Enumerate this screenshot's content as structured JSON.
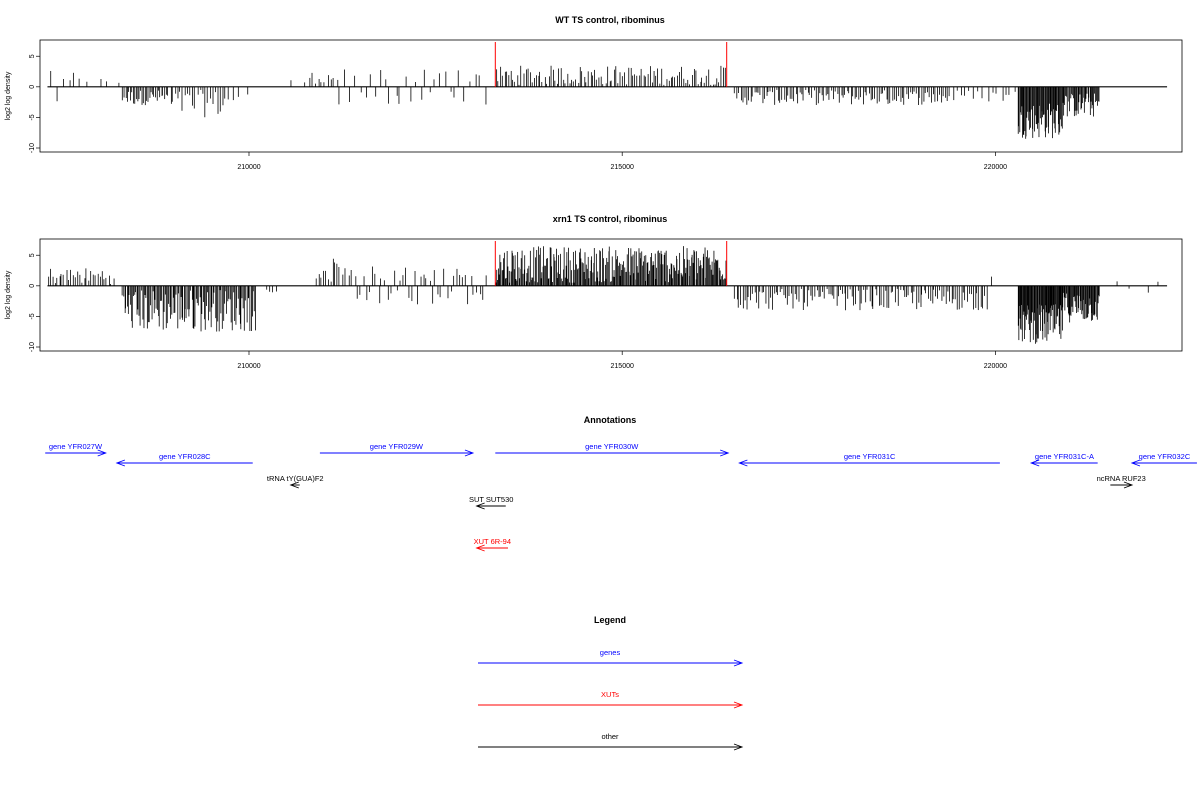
{
  "chart_data": [
    {
      "type": "bar",
      "title": "WT TS control, ribominus",
      "ylabel": "log2 log density",
      "xlabel": "",
      "xlim": [
        207200,
        222500
      ],
      "ylim": [
        -10,
        7
      ],
      "x_ticks": [
        210000,
        215000,
        220000
      ],
      "x_tick_labels": [
        "210000",
        "215000",
        "220000"
      ],
      "y_ticks": [
        5,
        0,
        -5,
        -10
      ],
      "y_tick_labels": [
        "5",
        "0",
        "-5",
        "-10"
      ],
      "markers": [
        {
          "x": 213300,
          "color": "#ff0000"
        },
        {
          "x": 216400,
          "color": "#ff0000"
        }
      ],
      "segments": [
        {
          "from": 207300,
          "to": 207800,
          "count": 6,
          "min": -2.0,
          "max": 1.8,
          "sign": "mixed"
        },
        {
          "from": 207800,
          "to": 208300,
          "count": 4,
          "min": 0.5,
          "max": 1.4,
          "sign": "pos"
        },
        {
          "from": 208300,
          "to": 208900,
          "count": 30,
          "min": -3.0,
          "max": -0.5,
          "sign": "neg"
        },
        {
          "from": 208900,
          "to": 209700,
          "count": 24,
          "min": -5.0,
          "max": -0.5,
          "sign": "neg"
        },
        {
          "from": 209700,
          "to": 210000,
          "count": 4,
          "min": -3.0,
          "max": -0.5,
          "sign": "neg"
        },
        {
          "from": 210500,
          "to": 210800,
          "count": 2,
          "min": 0.5,
          "max": 1.2,
          "sign": "pos"
        },
        {
          "from": 210800,
          "to": 211200,
          "count": 10,
          "min": 0.5,
          "max": 2.5,
          "sign": "pos"
        },
        {
          "from": 211200,
          "to": 213200,
          "count": 30,
          "min": -2.0,
          "max": 2.3,
          "sign": "mixed"
        },
        {
          "from": 213300,
          "to": 216400,
          "count": 110,
          "min": 0.3,
          "max": 3.5,
          "sign": "pos"
        },
        {
          "from": 216500,
          "to": 219400,
          "count": 110,
          "min": -3.0,
          "max": -0.5,
          "sign": "neg"
        },
        {
          "from": 219400,
          "to": 220300,
          "count": 15,
          "min": -2.5,
          "max": -0.5,
          "sign": "neg"
        },
        {
          "from": 220300,
          "to": 220900,
          "count": 60,
          "min": -8.5,
          "max": -2.5,
          "sign": "neg"
        },
        {
          "from": 220900,
          "to": 221400,
          "count": 40,
          "min": -5.0,
          "max": -1.0,
          "sign": "neg"
        }
      ]
    },
    {
      "type": "bar",
      "title": "xrn1 TS control, ribominus",
      "ylabel": "log2 log density",
      "xlabel": "",
      "xlim": [
        207200,
        222500
      ],
      "ylim": [
        -10,
        7
      ],
      "x_ticks": [
        210000,
        215000,
        220000
      ],
      "x_tick_labels": [
        "210000",
        "215000",
        "220000"
      ],
      "y_ticks": [
        5,
        0,
        -5,
        -10
      ],
      "y_tick_labels": [
        "5",
        "0",
        "-5",
        "-10"
      ],
      "markers": [
        {
          "x": 213300,
          "color": "#ff0000"
        },
        {
          "x": 216400,
          "color": "#ff0000"
        }
      ],
      "segments": [
        {
          "from": 207300,
          "to": 208200,
          "count": 30,
          "min": 0.3,
          "max": 3.0,
          "sign": "pos"
        },
        {
          "from": 208300,
          "to": 210100,
          "count": 120,
          "min": -7.5,
          "max": -0.5,
          "sign": "neg"
        },
        {
          "from": 210200,
          "to": 210400,
          "count": 4,
          "min": -1.5,
          "max": -0.5,
          "sign": "neg"
        },
        {
          "from": 210900,
          "to": 211200,
          "count": 10,
          "min": 0.5,
          "max": 4.5,
          "sign": "pos"
        },
        {
          "from": 211200,
          "to": 213200,
          "count": 50,
          "min": -2.5,
          "max": 2.5,
          "sign": "mixed"
        },
        {
          "from": 213300,
          "to": 216400,
          "count": 260,
          "min": 0.5,
          "max": 6.5,
          "sign": "pos"
        },
        {
          "from": 216500,
          "to": 219900,
          "count": 130,
          "min": -4.0,
          "max": -0.5,
          "sign": "neg"
        },
        {
          "from": 219900,
          "to": 220000,
          "count": 1,
          "min": 1.5,
          "max": 1.5,
          "sign": "pos"
        },
        {
          "from": 220300,
          "to": 220900,
          "count": 70,
          "min": -9.5,
          "max": -3.0,
          "sign": "neg"
        },
        {
          "from": 220900,
          "to": 221400,
          "count": 50,
          "min": -6.0,
          "max": -1.0,
          "sign": "neg"
        },
        {
          "from": 221500,
          "to": 222300,
          "count": 4,
          "min": -1.0,
          "max": 0.5,
          "sign": "mixed"
        }
      ]
    }
  ],
  "annotations": {
    "title": "Annotations",
    "items": [
      {
        "label": "gene YFR027W",
        "type": "gene",
        "strand": "+",
        "start": 207270,
        "end": 208080,
        "row": 0
      },
      {
        "label": "gene YFR028C",
        "type": "gene",
        "strand": "-",
        "start": 208230,
        "end": 210050,
        "row": 1
      },
      {
        "label": "gene YFR029W",
        "type": "gene",
        "strand": "+",
        "start": 210950,
        "end": 213000,
        "row": 0
      },
      {
        "label": "gene YFR030W",
        "type": "gene",
        "strand": "+",
        "start": 213300,
        "end": 216420,
        "row": 0
      },
      {
        "label": "gene YFR031C",
        "type": "gene",
        "strand": "-",
        "start": 216570,
        "end": 220060,
        "row": 1
      },
      {
        "label": "gene YFR031C-A",
        "type": "gene",
        "strand": "-",
        "start": 220480,
        "end": 221370,
        "row": 1
      },
      {
        "label": "gene YFR032C",
        "type": "gene",
        "strand": "-",
        "start": 221830,
        "end": 222700,
        "row": 1
      },
      {
        "label": "tRNA tY(GUA)F2",
        "type": "other",
        "strand": "-",
        "start": 210560,
        "end": 210680,
        "row": 2
      },
      {
        "label": "ncRNA RUF23",
        "type": "other",
        "strand": "+",
        "start": 221540,
        "end": 221830,
        "row": 2
      },
      {
        "label": "SUT SUT530",
        "type": "other",
        "strand": "-",
        "start": 213050,
        "end": 213440,
        "row": 3
      },
      {
        "label": "XUT 6R-94",
        "type": "xut",
        "strand": "-",
        "start": 213050,
        "end": 213470,
        "row": 5
      }
    ]
  },
  "legend": {
    "title": "Legend",
    "items": [
      {
        "label": "genes",
        "color": "#0000ff"
      },
      {
        "label": "XUTs",
        "color": "#ff0000"
      },
      {
        "label": "other",
        "color": "#000000"
      }
    ]
  },
  "colors": {
    "gene": "#0000ff",
    "xut": "#ff0000",
    "other": "#000000",
    "marker": "#ff0000"
  }
}
